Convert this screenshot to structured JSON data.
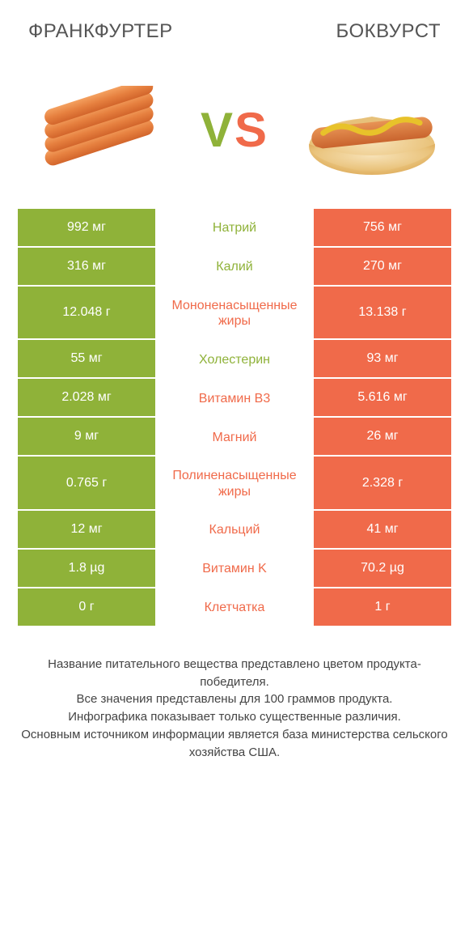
{
  "header": {
    "left_title": "ФРАНКФУРТЕР",
    "right_title": "БОКВУРСТ"
  },
  "vs": {
    "v": "V",
    "s": "S"
  },
  "colors": {
    "green": "#8fb239",
    "orange": "#f06a4a",
    "mid_green_text": "#8fb239",
    "mid_orange_text": "#f06a4a"
  },
  "rows": [
    {
      "left": "992 мг",
      "mid": "Натрий",
      "right": "756 мг",
      "winner": "left"
    },
    {
      "left": "316 мг",
      "mid": "Калий",
      "right": "270 мг",
      "winner": "left"
    },
    {
      "left": "12.048 г",
      "mid": "Мононенасыщенные жиры",
      "right": "13.138 г",
      "winner": "right"
    },
    {
      "left": "55 мг",
      "mid": "Холестерин",
      "right": "93 мг",
      "winner": "left"
    },
    {
      "left": "2.028 мг",
      "mid": "Витамин B3",
      "right": "5.616 мг",
      "winner": "right"
    },
    {
      "left": "9 мг",
      "mid": "Магний",
      "right": "26 мг",
      "winner": "right"
    },
    {
      "left": "0.765 г",
      "mid": "Полиненасыщенные жиры",
      "right": "2.328 г",
      "winner": "right"
    },
    {
      "left": "12 мг",
      "mid": "Кальций",
      "right": "41 мг",
      "winner": "right"
    },
    {
      "left": "1.8 µg",
      "mid": "Витамин K",
      "right": "70.2 µg",
      "winner": "right"
    },
    {
      "left": "0 г",
      "mid": "Клетчатка",
      "right": "1 г",
      "winner": "right"
    }
  ],
  "footer": {
    "line1": "Название питательного вещества представлено цветом продукта-победителя.",
    "line2": "Все значения представлены для 100 граммов продукта.",
    "line3": "Инфографика показывает только существенные различия.",
    "line4": "Основным источником информации является база министерства сельского хозяйства США."
  }
}
